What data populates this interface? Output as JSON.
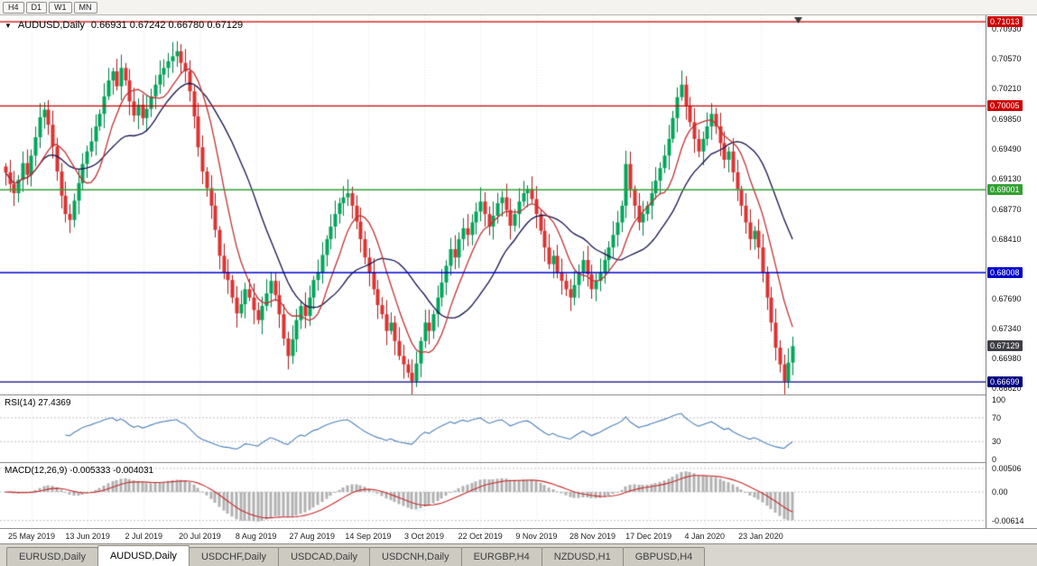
{
  "toolbar": {
    "timeframes": [
      "H4",
      "D1",
      "W1",
      "MN"
    ]
  },
  "icons": {
    "symbol_marker": "▼",
    "end_marker": "triangle-down"
  },
  "chart": {
    "title_symbol": "AUDUSD,Daily",
    "title_ohlc": "0.66931 0.67242 0.66780 0.67129",
    "colors": {
      "bull": "#00a65a",
      "bull_border": "#007e46",
      "bear": "#de3232",
      "bear_border": "#a81e1e",
      "ma_fast": "#c03333",
      "ma_slow": "#141450",
      "grid": "#e3e3e3",
      "rsi_line": "#4f81bd",
      "macd_hist": "#b2b2b2",
      "macd_signal": "#c82a2a",
      "current_bg": "#3e3e46"
    }
  },
  "rsi": {
    "label": "RSI(14) 27.4369",
    "period": 14,
    "ticks": [
      "100",
      "70",
      "30",
      "0"
    ],
    "dotted_levels": [
      70,
      30
    ]
  },
  "macd": {
    "label": "MACD(12,26,9) -0.005333 -0.004031",
    "fast": 12,
    "slow": 26,
    "signal": 9,
    "ticks": [
      "0.00506",
      "0.00",
      "-0.00614"
    ]
  },
  "tabs": {
    "active_index": 1,
    "items": [
      "EURUSD,Daily",
      "AUDUSD,Daily",
      "USDCHF,Daily",
      "USDCAD,Daily",
      "USDCNH,Daily",
      "EURGBP,H4",
      "NZDUSD,H1",
      "GBPUSD,H4"
    ]
  },
  "chart_data": {
    "type": "candlestick",
    "symbol": "AUDUSD",
    "timeframe": "Daily",
    "ylim": [
      0.6656,
      0.7109
    ],
    "y_axis_ticks": [
      "0.70930",
      "0.70570",
      "0.70210",
      "0.69850",
      "0.69490",
      "0.69130",
      "0.68770",
      "0.68410",
      "0.67690",
      "0.67340",
      "0.66980",
      "0.66620"
    ],
    "x_labels": [
      "25 May 2019",
      "13 Jun 2019",
      "2 Jul 2019",
      "20 Jul 2019",
      "8 Aug 2019",
      "27 Aug 2019",
      "14 Sep 2019",
      "3 Oct 2019",
      "22 Oct 2019",
      "9 Nov 2019",
      "28 Nov 2019",
      "17 Dec 2019",
      "4 Jan 2020",
      "23 Jan 2020"
    ],
    "levels": [
      {
        "value": 0.71013,
        "label": "0.71013",
        "color": "#cc0000"
      },
      {
        "value": 0.70005,
        "label": "0.70005",
        "color": "#cc0000"
      },
      {
        "value": 0.69001,
        "label": "0.69001",
        "color": "#33a033"
      },
      {
        "value": 0.68008,
        "label": "0.68008",
        "color": "#0000cc"
      },
      {
        "value": 0.66699,
        "label": "0.66699",
        "color": "#000080"
      }
    ],
    "current_price": {
      "value": 0.67129,
      "label": "0.67129"
    },
    "last_bar": {
      "open": 0.66931,
      "high": 0.67242,
      "low": 0.6678,
      "close": 0.67129
    },
    "first_open": 0.6928,
    "ma": {
      "fast_period": 9,
      "slow_period": 21
    },
    "closes": [
      0.6921,
      0.6907,
      0.6896,
      0.6912,
      0.6932,
      0.6918,
      0.6941,
      0.6963,
      0.6987,
      0.6996,
      0.6978,
      0.6952,
      0.6922,
      0.6893,
      0.6871,
      0.6864,
      0.6887,
      0.6908,
      0.6931,
      0.6946,
      0.6958,
      0.6976,
      0.6991,
      0.7012,
      0.7031,
      0.7042,
      0.7024,
      0.7046,
      0.7031,
      0.7006,
      0.6989,
      0.7002,
      0.6986,
      0.6997,
      0.7012,
      0.7026,
      0.7038,
      0.7046,
      0.7054,
      0.706,
      0.7066,
      0.7052,
      0.7042,
      0.7018,
      0.6988,
      0.6951,
      0.6922,
      0.6902,
      0.6881,
      0.6852,
      0.6821,
      0.6801,
      0.6792,
      0.6771,
      0.6752,
      0.6763,
      0.6781,
      0.6771,
      0.6756,
      0.6744,
      0.6761,
      0.6776,
      0.6791,
      0.6774,
      0.6751,
      0.6722,
      0.6701,
      0.6721,
      0.6744,
      0.6761,
      0.6749,
      0.6771,
      0.6792,
      0.6801,
      0.6822,
      0.6841,
      0.6856,
      0.6871,
      0.6884,
      0.6891,
      0.6896,
      0.6881,
      0.6862,
      0.6841,
      0.6819,
      0.6801,
      0.6781,
      0.6762,
      0.6751,
      0.6731,
      0.6741,
      0.6719,
      0.6701,
      0.6691,
      0.6681,
      0.6671,
      0.6692,
      0.6719,
      0.6741,
      0.6731,
      0.6751,
      0.6771,
      0.6789,
      0.6809,
      0.6829,
      0.6819,
      0.6841,
      0.6854,
      0.6846,
      0.6861,
      0.6874,
      0.6886,
      0.6871,
      0.6856,
      0.6869,
      0.6884,
      0.6891,
      0.6876,
      0.6857,
      0.6871,
      0.6886,
      0.6896,
      0.6901,
      0.6889,
      0.6871,
      0.6851,
      0.6831,
      0.6811,
      0.6821,
      0.6801,
      0.6791,
      0.6781,
      0.6771,
      0.6786,
      0.6801,
      0.6816,
      0.6799,
      0.6781,
      0.6791,
      0.6801,
      0.6816,
      0.6831,
      0.6846,
      0.6861,
      0.6881,
      0.6931,
      0.6901,
      0.6881,
      0.6861,
      0.6871,
      0.6881,
      0.6896,
      0.6911,
      0.6926,
      0.6941,
      0.6961,
      0.6986,
      0.7011,
      0.7026,
      0.7001,
      0.6981,
      0.6961,
      0.6946,
      0.6961,
      0.6976,
      0.6991,
      0.6976,
      0.6956,
      0.6936,
      0.6946,
      0.6921,
      0.6901,
      0.6881,
      0.6861,
      0.6841,
      0.6851,
      0.6831,
      0.6801,
      0.6771,
      0.6741,
      0.6711,
      0.6691,
      0.6671,
      0.66931,
      0.67129
    ]
  }
}
